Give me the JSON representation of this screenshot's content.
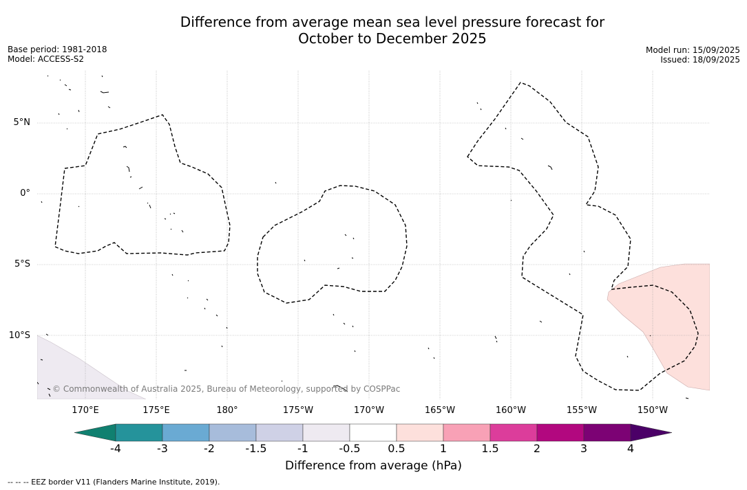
{
  "title": {
    "line1": "Difference from average mean sea level pressure forecast for",
    "line2": "October to December 2025"
  },
  "meta": {
    "base_period": "Base period: 1981-2018",
    "model": "Model: ACCESS-S2",
    "model_run": "Model run: 15/09/2025",
    "issued": "Issued: 18/09/2025"
  },
  "map": {
    "lat_labels": [
      "5°N",
      "0°",
      "5°S",
      "10°S"
    ],
    "lon_labels": [
      "170°E",
      "175°E",
      "180°",
      "175°W",
      "170°W",
      "165°W",
      "160°W",
      "155°W",
      "150°W"
    ],
    "copyright": "© Commonwealth of Australia 2025, Bureau of Meteorology, supported by COSPPac",
    "anomaly_colors": {
      "positive_0_5_to_1": "#fde0dc",
      "negative_minus1_to_minus0_5": "#eeeaf1"
    }
  },
  "colorbar": {
    "label": "Difference from average (hPa)",
    "ticks": [
      "-4",
      "-3",
      "-2",
      "-1.5",
      "-1",
      "-0.5",
      "0.5",
      "1",
      "1.5",
      "2",
      "3",
      "4"
    ],
    "colors": [
      "#108070",
      "#25939b",
      "#6aaad3",
      "#a7bcdb",
      "#cfd1e6",
      "#eeeaf1",
      "#ffffff",
      "#fde0dc",
      "#f8a1b6",
      "#dc3d9b",
      "#b2087f",
      "#7c0274",
      "#4b0067"
    ]
  },
  "footnote": "--  --  -- EEZ border V11 (Flanders Marine Institute, 2019)."
}
